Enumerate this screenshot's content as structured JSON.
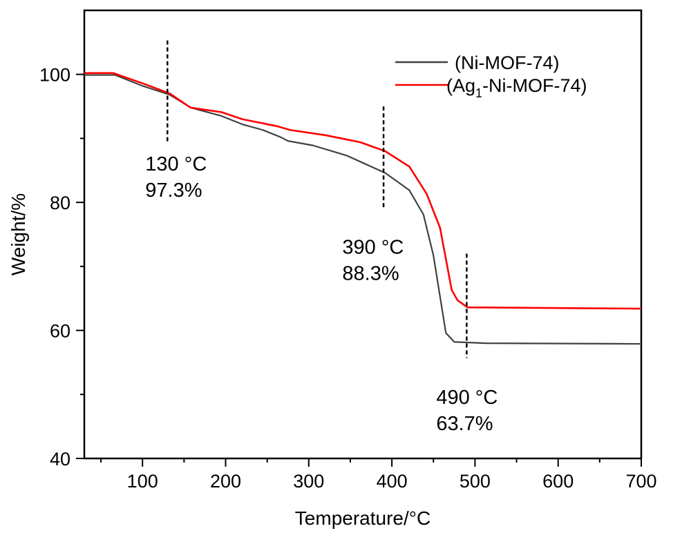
{
  "chart_data": {
    "type": "line",
    "xlabel": "Temperature/°C",
    "ylabel": "Weight/%",
    "xlim": [
      30,
      700
    ],
    "ylim": [
      40,
      110
    ],
    "xticks": [
      100,
      200,
      300,
      400,
      500,
      600,
      700
    ],
    "yticks": [
      40,
      60,
      80,
      100
    ],
    "grid": false,
    "legend_placement": "top-right",
    "series": [
      {
        "name": "(Ni-MOF-74)",
        "legend_main": "(Ni-MOF-74)",
        "color": "#404040",
        "x": [
          30,
          67,
          100,
          133,
          158,
          195,
          220,
          245,
          266,
          275,
          305,
          346,
          392,
          421,
          438,
          450,
          465,
          475,
          513,
          700
        ],
        "y": [
          99.9,
          99.9,
          98.2,
          96.8,
          94.8,
          93.5,
          92.2,
          91.3,
          90.2,
          89.6,
          88.9,
          87.3,
          84.6,
          81.9,
          78.1,
          71.7,
          59.6,
          58.2,
          58.0,
          57.9
        ]
      },
      {
        "name": "(Ag1-Ni-MOF-74)",
        "legend_main": "(Ag",
        "legend_sub": "1",
        "legend_rest": "-Ni-MOF-74)",
        "color": "#ff0000",
        "x": [
          30,
          65,
          100,
          133,
          158,
          195,
          220,
          262,
          278,
          320,
          362,
          392,
          421,
          442,
          458,
          472,
          479,
          491,
          700
        ],
        "y": [
          100.2,
          100.2,
          98.6,
          97.0,
          94.8,
          94.1,
          93.0,
          91.9,
          91.3,
          90.5,
          89.4,
          88.0,
          85.6,
          81.3,
          76.0,
          66.3,
          64.7,
          63.6,
          63.4
        ]
      }
    ],
    "annotations": [
      {
        "x": 130,
        "y_range": [
          89.2,
          105.3
        ],
        "line1": "130 °C",
        "line2": "97.3%",
        "label_x": 130,
        "label_y": 85
      },
      {
        "x": 390,
        "y_range": [
          78.9,
          95.0
        ],
        "line1": "390 °C",
        "line2": "88.3%",
        "label_x": 367,
        "label_y": 72
      },
      {
        "x": 490,
        "y_range": [
          55.7,
          72.0
        ],
        "line1": "490 °C",
        "line2": "63.7%",
        "label_x": 480,
        "label_y": 48.5
      }
    ]
  }
}
